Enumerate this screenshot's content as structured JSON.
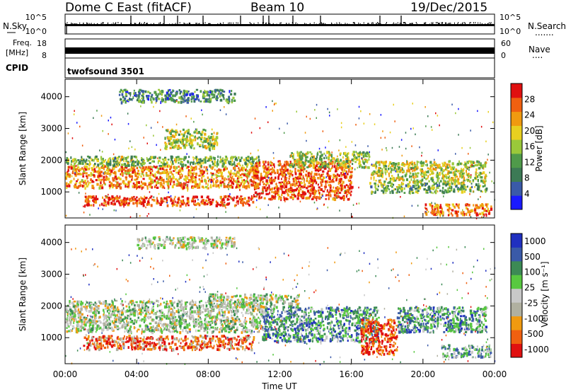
{
  "header": {
    "station": "Dome C East (fitACF)",
    "beam": "Beam 10",
    "date": "19/Dec/2015"
  },
  "status_panels": {
    "nsky_label": "N.Sky",
    "nsearch_label": "N.Search",
    "nsearch_dots": ".......",
    "freq_label_line1": "Freq.",
    "freq_label_line2": "[MHz]",
    "nave_label": "Nave",
    "nave_dots": "....",
    "cpid_label": "CPID",
    "cpid_value": "twofsound 3501",
    "noise_ticks_left": [
      "10^5",
      "10^0"
    ],
    "noise_ticks_right": [
      "10^5",
      "10^0"
    ],
    "freq_ticks": [
      "18",
      "8"
    ],
    "nave_ticks": [
      "60",
      "0"
    ]
  },
  "colors": {
    "power_scale": [
      "#1a1aff",
      "#3a5aa8",
      "#3c7a55",
      "#4f9a4a",
      "#9ac83a",
      "#e8d020",
      "#f09a10",
      "#f06010",
      "#e01010"
    ],
    "velocity_scale": [
      "#e01010",
      "#f06010",
      "#f09a10",
      "#b0b0a0",
      "#c8c8c8",
      "#58c840",
      "#3c8a55",
      "#3a5aa8",
      "#2030c0"
    ]
  },
  "chart_data": [
    {
      "type": "heatmap",
      "name": "power",
      "xlabel": "",
      "ylabel": "Slant Range [km]",
      "x_ticks": [
        "00:00",
        "04:00",
        "08:00",
        "12:00",
        "16:00",
        "20:00",
        "00:00"
      ],
      "xlim_hours": [
        0,
        24
      ],
      "y_ticks": [
        1000,
        2000,
        3000,
        4000
      ],
      "ylim": [
        180,
        4550
      ],
      "colorbar": {
        "label": "Power [dB]",
        "ticks": [
          4,
          8,
          12,
          16,
          20,
          24,
          28
        ],
        "range": [
          0,
          32
        ]
      },
      "bands": [
        {
          "t0": 0.0,
          "t1": 10.8,
          "r0": 1150,
          "r1": 1850,
          "level": 0.75
        },
        {
          "t0": 0.0,
          "t1": 10.8,
          "r0": 1850,
          "r1": 2150,
          "level": 0.45
        },
        {
          "t0": 1.0,
          "t1": 10.5,
          "r0": 600,
          "r1": 900,
          "level": 0.9
        },
        {
          "t0": 10.5,
          "t1": 16.0,
          "r0": 800,
          "r1": 2000,
          "level": 0.85
        },
        {
          "t0": 12.5,
          "t1": 17.0,
          "r0": 1800,
          "r1": 2300,
          "level": 0.5
        },
        {
          "t0": 17.0,
          "t1": 23.5,
          "r0": 1300,
          "r1": 2000,
          "level": 0.55
        },
        {
          "t0": 17.0,
          "t1": 23.5,
          "r0": 1000,
          "r1": 1300,
          "level": 0.4
        },
        {
          "t0": 20.0,
          "t1": 23.8,
          "r0": 300,
          "r1": 650,
          "level": 0.8
        },
        {
          "t0": 3.0,
          "t1": 9.5,
          "r0": 3850,
          "r1": 4250,
          "level": 0.3
        },
        {
          "t0": 5.5,
          "t1": 8.5,
          "r0": 2400,
          "r1": 3000,
          "level": 0.55
        }
      ]
    },
    {
      "type": "heatmap",
      "name": "velocity",
      "xlabel": "Time UT",
      "ylabel": "Slant Range [km]",
      "x_ticks": [
        "00:00",
        "04:00",
        "08:00",
        "12:00",
        "16:00",
        "20:00",
        "00:00"
      ],
      "xlim_hours": [
        0,
        24
      ],
      "y_ticks": [
        1000,
        2000,
        3000,
        4000
      ],
      "ylim": [
        180,
        4550
      ],
      "colorbar": {
        "label": "Velocity [m s⁻¹]",
        "ticks": [
          1000,
          500,
          100,
          25,
          -25,
          -100,
          -500,
          -1000
        ]
      },
      "bands": [
        {
          "t0": 0.0,
          "t1": 11.0,
          "r0": 1200,
          "r1": 2200,
          "level": 0.5
        },
        {
          "t0": 1.0,
          "t1": 10.5,
          "r0": 650,
          "r1": 1100,
          "level": 0.2
        },
        {
          "t0": 11.0,
          "t1": 17.5,
          "r0": 900,
          "r1": 2000,
          "level": 0.72
        },
        {
          "t0": 8.0,
          "t1": 13.0,
          "r0": 2000,
          "r1": 2400,
          "level": 0.5
        },
        {
          "t0": 16.5,
          "t1": 18.5,
          "r0": 500,
          "r1": 1600,
          "level": 0.1
        },
        {
          "t0": 18.5,
          "t1": 23.5,
          "r0": 1200,
          "r1": 2000,
          "level": 0.72
        },
        {
          "t0": 21.0,
          "t1": 23.8,
          "r0": 400,
          "r1": 800,
          "level": 0.68
        },
        {
          "t0": 4.0,
          "t1": 9.5,
          "r0": 3850,
          "r1": 4200,
          "level": 0.5
        }
      ]
    }
  ]
}
